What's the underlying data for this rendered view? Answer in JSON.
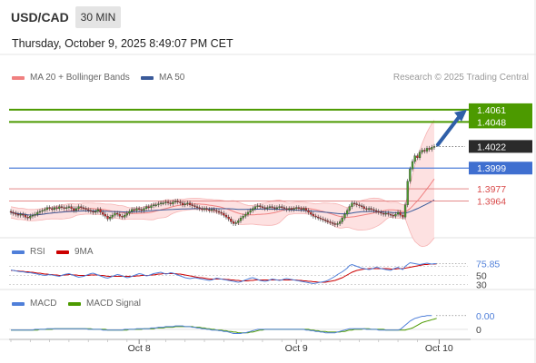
{
  "header": {
    "symbol": "USD/CAD",
    "timeframe": "30 MIN",
    "datetime": "Thursday, October 9, 2025 8:49:07 PM CET",
    "legend_ma20": "MA 20 + Bollinger Bands",
    "legend_ma50": "MA 50",
    "credit": "Research © 2025 Trading Central"
  },
  "colors": {
    "target": "#4c9a00",
    "pivot": "#4f7fd9",
    "support": "#d94c4c",
    "ma20": "#f08080",
    "ma50": "#3a5a99",
    "rsi": "#4f7fd9",
    "rsi_ma": "#cc0000",
    "macd": "#4f7fd9",
    "macd_signal": "#4c9a00",
    "band_fill": "#fde1e1",
    "candle_up": "#4d9a2e",
    "candle_down": "#cc2b2b"
  },
  "chart_data": [
    {
      "type": "candlestick",
      "title": "USD/CAD",
      "y_range": [
        1.3925,
        1.4085
      ],
      "x_ticks": [
        {
          "label": "Oct 8",
          "index": 53
        },
        {
          "label": "Oct 9",
          "index": 118
        },
        {
          "label": "Oct 10",
          "index": 177
        }
      ],
      "price_levels": [
        {
          "label": "1.4061",
          "value": 1.4061,
          "kind": "target"
        },
        {
          "label": "1.4048",
          "value": 1.4048,
          "kind": "target"
        },
        {
          "label": "1.4022",
          "value": 1.4022,
          "kind": "last"
        },
        {
          "label": "1.3999",
          "value": 1.3999,
          "kind": "pivot"
        },
        {
          "label": "1.3977",
          "value": 1.3977,
          "kind": "support"
        },
        {
          "label": "1.3964",
          "value": 1.3964,
          "kind": "support"
        }
      ],
      "close": [
        1.3952,
        1.3951,
        1.395,
        1.3949,
        1.395,
        1.3949,
        1.3947,
        1.3946,
        1.3948,
        1.3949,
        1.395,
        1.3952,
        1.3953,
        1.3954,
        1.3955,
        1.3957,
        1.3956,
        1.3955,
        1.3957,
        1.3956,
        1.3958,
        1.3957,
        1.3956,
        1.3957,
        1.3958,
        1.3956,
        1.3954,
        1.3956,
        1.3958,
        1.3957,
        1.3956,
        1.3955,
        1.3954,
        1.3953,
        1.3952,
        1.3953,
        1.3955,
        1.3952,
        1.395,
        1.3948,
        1.3945,
        1.3947,
        1.3949,
        1.3951,
        1.395,
        1.3948,
        1.3947,
        1.3949,
        1.3951,
        1.3953,
        1.3955,
        1.3954,
        1.3956,
        1.3955,
        1.3954,
        1.3956,
        1.3958,
        1.3957,
        1.3959,
        1.396,
        1.396,
        1.3961,
        1.3962,
        1.3962,
        1.3963,
        1.3962,
        1.3961,
        1.3963,
        1.3964,
        1.3963,
        1.3962,
        1.396,
        1.3961,
        1.3962,
        1.396,
        1.3959,
        1.3958,
        1.3957,
        1.3956,
        1.3955,
        1.3956,
        1.3955,
        1.3954,
        1.3955,
        1.3954,
        1.3953,
        1.3952,
        1.3951,
        1.3949,
        1.3947,
        1.3945,
        1.3942,
        1.394,
        1.3941,
        1.3943,
        1.3946,
        1.3948,
        1.395,
        1.3952,
        1.3954,
        1.3956,
        1.3958,
        1.3959,
        1.3958,
        1.3957,
        1.3956,
        1.3957,
        1.3958,
        1.3957,
        1.3956,
        1.3957,
        1.3958,
        1.3957,
        1.3956,
        1.3955,
        1.3956,
        1.3955,
        1.3956,
        1.3957,
        1.3956,
        1.3955,
        1.3956,
        1.3954,
        1.3952,
        1.395,
        1.3948,
        1.3947,
        1.3946,
        1.3945,
        1.3944,
        1.3943,
        1.3942,
        1.3941,
        1.394,
        1.3939,
        1.394,
        1.3942,
        1.3946,
        1.395,
        1.3954,
        1.3958,
        1.3962,
        1.3961,
        1.396,
        1.3959,
        1.3958,
        1.3956,
        1.3955,
        1.3956,
        1.3955,
        1.3954,
        1.3953,
        1.3952,
        1.3951,
        1.395,
        1.3951,
        1.395,
        1.3949,
        1.3948,
        1.395,
        1.3952,
        1.3949,
        1.3947,
        1.396,
        1.3985,
        1.3998,
        1.4006,
        1.4012,
        1.401,
        1.4016,
        1.4018,
        1.4017,
        1.402,
        1.4019,
        1.4021,
        1.4022
      ]
    },
    {
      "type": "line",
      "title": "RSI",
      "series_names": [
        "RSI",
        "9MA"
      ],
      "value_label": "75.85",
      "level_labels": [
        "50",
        "30"
      ],
      "rsi": [
        62,
        61,
        60,
        59,
        58,
        58,
        57,
        56,
        56,
        55,
        54,
        53,
        52,
        51,
        50,
        51,
        52,
        51,
        50,
        49,
        48,
        50,
        52,
        53,
        54,
        52,
        50,
        48,
        46,
        47,
        48,
        50,
        52,
        54,
        55,
        53,
        51,
        49,
        47,
        45,
        44,
        46,
        48,
        50,
        52,
        51,
        49,
        47,
        45,
        46,
        48,
        50,
        52,
        54,
        53,
        51,
        49,
        50,
        52,
        54,
        55,
        56,
        57,
        55,
        53,
        54,
        56,
        55,
        53,
        51,
        49,
        47,
        45,
        44,
        43,
        44,
        45,
        44,
        43,
        42,
        41,
        40,
        39,
        40,
        42,
        44,
        43,
        42,
        41,
        40,
        39,
        38,
        37,
        36,
        35,
        36,
        38,
        40,
        42,
        44,
        45,
        43,
        41,
        39,
        38,
        37,
        38,
        40,
        42,
        41,
        40,
        39,
        40,
        42,
        43,
        42,
        41,
        40,
        39,
        38,
        37,
        36,
        35,
        34,
        33,
        32,
        33,
        34,
        35,
        36,
        37,
        39,
        42,
        45,
        48,
        52,
        55,
        58,
        62,
        66,
        72,
        74,
        72,
        70,
        68,
        66,
        65,
        64,
        63,
        64,
        66,
        68,
        67,
        65,
        64,
        63,
        62,
        61,
        64,
        66,
        68,
        65,
        63,
        70,
        74,
        78,
        77,
        76,
        75,
        74,
        75,
        76,
        77,
        76,
        75,
        76,
        75.85
      ],
      "rsi_ma": [
        61,
        61,
        60,
        60,
        59,
        59,
        58,
        58,
        57,
        57,
        56,
        55,
        55,
        54,
        53,
        53,
        52,
        52,
        51,
        51,
        50,
        50,
        51,
        51,
        52,
        52,
        51,
        51,
        50,
        50,
        50,
        50,
        50,
        51,
        51,
        51,
        51,
        50,
        50,
        49,
        48,
        48,
        48,
        48,
        48,
        48,
        48,
        48,
        48,
        48,
        48,
        48,
        49,
        49,
        50,
        50,
        50,
        50,
        51,
        51,
        52,
        53,
        53,
        54,
        54,
        54,
        54,
        54,
        54,
        53,
        53,
        52,
        51,
        50,
        49,
        48,
        47,
        46,
        45,
        45,
        44,
        43,
        42,
        42,
        42,
        42,
        42,
        42,
        42,
        41,
        41,
        40,
        40,
        39,
        39,
        38,
        38,
        38,
        38,
        39,
        39,
        40,
        40,
        40,
        40,
        40,
        40,
        40,
        40,
        40,
        40,
        40,
        40,
        40,
        40,
        40,
        40,
        40,
        40,
        39,
        39,
        38,
        38,
        37,
        37,
        36,
        36,
        35,
        35,
        35,
        35,
        36,
        37,
        38,
        39,
        41,
        43,
        45,
        48,
        51,
        54,
        57,
        59,
        61,
        62,
        63,
        64,
        64,
        65,
        65,
        65,
        65,
        65,
        65,
        65,
        65,
        65,
        64,
        64,
        64,
        65,
        65,
        65,
        66,
        67,
        68,
        69,
        70,
        71,
        72,
        73,
        74,
        74,
        75,
        75,
        75,
        75.5
      ]
    },
    {
      "type": "line",
      "title": "MACD",
      "series_names": [
        "MACD",
        "MACD Signal"
      ],
      "value_label": "0.00",
      "zero_label": "0",
      "macd": [
        -0.0001,
        -0.0001,
        -0.0001,
        -0.0001,
        -0.0001,
        -0.0001,
        -0.0001,
        -0.0001,
        -0.0001,
        -0.0001,
        0,
        0,
        0,
        0,
        0,
        0.0001,
        0.0001,
        0.0001,
        0.0001,
        0.0001,
        0.0001,
        0.0001,
        0.0001,
        0.0001,
        0.0001,
        0.0001,
        0.0001,
        0.0001,
        0.0001,
        0.0001,
        0.0001,
        0.0001,
        0,
        0,
        0,
        0,
        0,
        0,
        -0.0001,
        -0.0001,
        -0.0001,
        -0.0001,
        -0.0001,
        -0.0001,
        -0.0001,
        -0.0001,
        -0.0001,
        0,
        0,
        0,
        0,
        0,
        0.0001,
        0.0001,
        0.0001,
        0.0001,
        0.0001,
        0.0001,
        0.0002,
        0.0002,
        0.0002,
        0.0003,
        0.0003,
        0.0003,
        0.0004,
        0.0004,
        0.0004,
        0.0004,
        0.0005,
        0.0005,
        0.0005,
        0.0005,
        0.0004,
        0.0004,
        0.0004,
        0.0003,
        0.0003,
        0.0002,
        0.0002,
        0.0001,
        0.0001,
        0,
        0,
        -0.0001,
        -0.0001,
        -0.0001,
        -0.0002,
        -0.0002,
        -0.0003,
        -0.0003,
        -0.0004,
        -0.0005,
        -0.0006,
        -0.0006,
        -0.0006,
        -0.0006,
        -0.0005,
        -0.0005,
        -0.0004,
        -0.0003,
        -0.0002,
        -0.0001,
        0,
        0,
        0,
        0,
        0,
        0,
        0,
        0,
        0,
        0,
        0,
        0,
        0,
        0,
        0,
        0,
        0,
        0,
        0,
        0,
        -0.0001,
        -0.0001,
        -0.0002,
        -0.0002,
        -0.0003,
        -0.0003,
        -0.0004,
        -0.0004,
        -0.0005,
        -0.0005,
        -0.0005,
        -0.0005,
        -0.0005,
        -0.0004,
        -0.0003,
        -0.0002,
        -0.0001,
        0,
        0.0001,
        0.0001,
        0.0001,
        0.0001,
        0.0001,
        0.0001,
        0.0001,
        0,
        0,
        0,
        0,
        0,
        -0.0001,
        -0.0001,
        -0.0001,
        -0.0001,
        -0.0001,
        -0.0001,
        -0.0001,
        -0.0001,
        -0.0001,
        0,
        0.0003,
        0.0006,
        0.0009,
        0.0012,
        0.0014,
        0.0016,
        0.0017,
        0.0018,
        0.0019,
        0.0019,
        0.002,
        0.002,
        0.002
      ],
      "signal": [
        -0.0001,
        -0.0001,
        -0.0001,
        -0.0001,
        -0.0001,
        -0.0001,
        -0.0001,
        -0.0001,
        -0.0001,
        -0.0001,
        -0.0001,
        -0.0001,
        0,
        0,
        0,
        0,
        0,
        0,
        0.0001,
        0.0001,
        0.0001,
        0.0001,
        0.0001,
        0.0001,
        0.0001,
        0.0001,
        0.0001,
        0.0001,
        0.0001,
        0.0001,
        0.0001,
        0.0001,
        0.0001,
        0.0001,
        0,
        0,
        0,
        0,
        0,
        0,
        -0.0001,
        -0.0001,
        -0.0001,
        -0.0001,
        -0.0001,
        -0.0001,
        -0.0001,
        -0.0001,
        -0.0001,
        0,
        0,
        0,
        0,
        0,
        0,
        0.0001,
        0.0001,
        0.0001,
        0.0001,
        0.0001,
        0.0002,
        0.0002,
        0.0002,
        0.0002,
        0.0003,
        0.0003,
        0.0003,
        0.0003,
        0.0004,
        0.0004,
        0.0004,
        0.0004,
        0.0004,
        0.0004,
        0.0004,
        0.0004,
        0.0003,
        0.0003,
        0.0003,
        0.0002,
        0.0002,
        0.0001,
        0.0001,
        0,
        0,
        -0.0001,
        -0.0001,
        -0.0001,
        -0.0002,
        -0.0002,
        -0.0003,
        -0.0003,
        -0.0004,
        -0.0004,
        -0.0005,
        -0.0005,
        -0.0005,
        -0.0005,
        -0.0005,
        -0.0004,
        -0.0004,
        -0.0003,
        -0.0002,
        -0.0001,
        -0.0001,
        0,
        0,
        0,
        0,
        0,
        0,
        0,
        0,
        0,
        0,
        0,
        0,
        0,
        0,
        0,
        0,
        0,
        0,
        0,
        -0.0001,
        -0.0001,
        -0.0002,
        -0.0002,
        -0.0003,
        -0.0003,
        -0.0003,
        -0.0004,
        -0.0004,
        -0.0004,
        -0.0004,
        -0.0004,
        -0.0004,
        -0.0003,
        -0.0003,
        -0.0002,
        -0.0001,
        -0.0001,
        0,
        0,
        0,
        0,
        0.0001,
        0.0001,
        0.0001,
        0,
        0,
        0,
        0,
        0,
        0,
        -0.0001,
        -0.0001,
        -0.0001,
        -0.0001,
        -0.0001,
        -0.0001,
        -0.0001,
        -0.0001,
        -0.0001,
        0,
        0.0001,
        0.0002,
        0.0004,
        0.0006,
        0.0008,
        0.001,
        0.0011,
        0.0012,
        0.0013,
        0.0014,
        0.0015,
        0.0016
      ]
    }
  ]
}
